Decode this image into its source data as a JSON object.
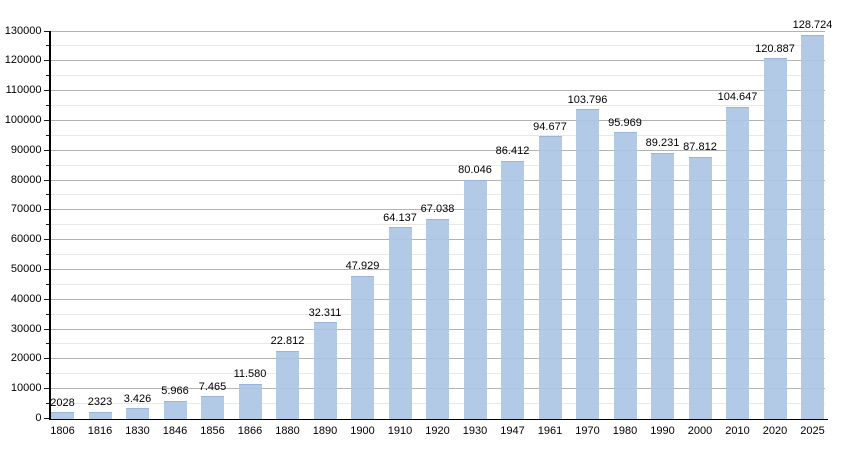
{
  "chart_data": {
    "type": "bar",
    "title": "",
    "xlabel": "",
    "ylabel": "",
    "categories": [
      "1806",
      "1816",
      "1830",
      "1846",
      "1856",
      "1866",
      "1880",
      "1890",
      "1900",
      "1910",
      "1920",
      "1930",
      "1947",
      "1961",
      "1970",
      "1980",
      "1990",
      "2000",
      "2010",
      "2020",
      "2025"
    ],
    "values": [
      2028,
      2323,
      3426,
      5966,
      7465,
      11580,
      22812,
      32311,
      47929,
      64137,
      67038,
      80046,
      86412,
      94677,
      103796,
      95969,
      89231,
      87812,
      104647,
      120887,
      128724
    ],
    "value_labels": [
      "2028",
      "2323",
      "3.426",
      "5.966",
      "7.465",
      "11.580",
      "22.812",
      "32.311",
      "47.929",
      "64.137",
      "67.038",
      "80.046",
      "86.412",
      "94.677",
      "103.796",
      "95.969",
      "89.231",
      "87.812",
      "104.647",
      "120.887",
      "128.724"
    ],
    "ylim": [
      0,
      130000
    ],
    "ytick_step": 10000,
    "yminor_step": 5000,
    "ytick_labels": [
      "0",
      "10000",
      "20000",
      "30000",
      "40000",
      "50000",
      "60000",
      "70000",
      "80000",
      "90000",
      "100000",
      "110000",
      "120000",
      "130000"
    ],
    "grid": true,
    "legend_position": "none",
    "colors": {
      "bar": "rgba(171,197,227,0.92)",
      "grid_major": "#b3b3b3",
      "grid_minor": "#e8e8e8",
      "axis": "#000000",
      "text": "#000000",
      "background": "#ffffff"
    }
  }
}
